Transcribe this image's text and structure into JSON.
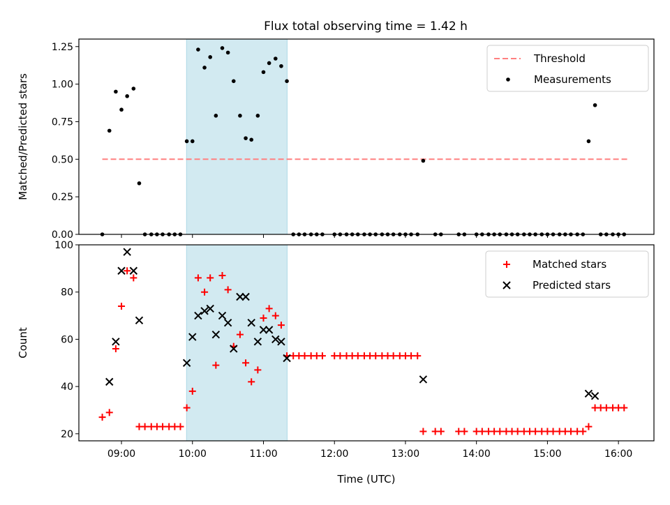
{
  "title": "Flux total observing time = 1.42 h",
  "colors": {
    "threshold": "#ff8080",
    "measurement": "#000000",
    "matched": "#ff0000",
    "predicted": "#000000",
    "highlight": "#add8e6"
  },
  "chart_data": [
    {
      "type": "scatter",
      "ylabel": "Matched/Predicted stars",
      "ylim": [
        0,
        1.3
      ],
      "xlim": [
        8.4,
        16.5
      ],
      "yticks": [
        0,
        0.25,
        0.5,
        0.75,
        1.0,
        1.25
      ],
      "ytick_labels": [
        "0.00",
        "0.25",
        "0.50",
        "0.75",
        "1.00",
        "1.25"
      ],
      "legend": [
        "Threshold",
        "Measurements"
      ],
      "legend_position": "top-right",
      "highlight_span": [
        "09:55",
        "11:20"
      ],
      "threshold": {
        "name": "Threshold",
        "y": 0.5,
        "x_range": [
          8.73,
          16.13
        ]
      },
      "series": [
        {
          "name": "Measurements",
          "x": [
            8.73,
            8.83,
            8.92,
            9.0,
            9.08,
            9.17,
            9.25,
            9.33,
            9.42,
            9.5,
            9.58,
            9.67,
            9.75,
            9.83,
            9.92,
            10.0,
            10.08,
            10.17,
            10.25,
            10.33,
            10.42,
            10.5,
            10.58,
            10.67,
            10.75,
            10.83,
            10.92,
            11.0,
            11.08,
            11.17,
            11.25,
            11.33,
            11.42,
            11.5,
            11.58,
            11.67,
            11.75,
            11.83,
            12.0,
            12.08,
            12.17,
            12.25,
            12.33,
            12.42,
            12.5,
            12.58,
            12.67,
            12.75,
            12.83,
            12.92,
            13.0,
            13.08,
            13.17,
            13.25,
            13.42,
            13.5,
            13.75,
            13.83,
            14.0,
            14.08,
            14.17,
            14.25,
            14.33,
            14.42,
            14.5,
            14.58,
            14.67,
            14.75,
            14.83,
            14.92,
            15.0,
            15.08,
            15.17,
            15.25,
            15.33,
            15.42,
            15.5,
            15.58,
            15.67,
            15.75,
            15.83,
            15.92,
            16.0,
            16.08
          ],
          "y": [
            0.0,
            0.69,
            0.95,
            0.83,
            0.92,
            0.97,
            0.34,
            0.0,
            0.0,
            0.0,
            0.0,
            0.0,
            0.0,
            0.0,
            0.62,
            0.62,
            1.23,
            1.11,
            1.18,
            0.79,
            1.24,
            1.21,
            1.02,
            0.79,
            0.64,
            0.63,
            0.79,
            1.08,
            1.14,
            1.17,
            1.12,
            1.02,
            0.0,
            0.0,
            0.0,
            0.0,
            0.0,
            0.0,
            0.0,
            0.0,
            0.0,
            0.0,
            0.0,
            0.0,
            0.0,
            0.0,
            0.0,
            0.0,
            0.0,
            0.0,
            0.0,
            0.0,
            0.0,
            0.49,
            0.0,
            0.0,
            0.0,
            0.0,
            0.0,
            0.0,
            0.0,
            0.0,
            0.0,
            0.0,
            0.0,
            0.0,
            0.0,
            0.0,
            0.0,
            0.0,
            0.0,
            0.0,
            0.0,
            0.0,
            0.0,
            0.0,
            0.0,
            0.62,
            0.86,
            0.0,
            0.0,
            0.0,
            0.0,
            0.0
          ]
        }
      ]
    },
    {
      "type": "scatter",
      "xlabel": "Time (UTC)",
      "ylabel": "Count",
      "ylim": [
        17,
        100
      ],
      "xlim": [
        8.4,
        16.5
      ],
      "yticks": [
        20,
        40,
        60,
        80,
        100
      ],
      "xticks": [
        9,
        10,
        11,
        12,
        13,
        14,
        15,
        16
      ],
      "xtick_labels": [
        "09:00",
        "10:00",
        "11:00",
        "12:00",
        "13:00",
        "14:00",
        "15:00",
        "16:00"
      ],
      "legend": [
        "Matched stars",
        "Predicted stars"
      ],
      "legend_position": "top-right",
      "highlight_span": [
        "09:55",
        "11:20"
      ],
      "series": [
        {
          "name": "Matched stars",
          "marker": "+",
          "x": [
            8.73,
            8.83,
            8.92,
            9.0,
            9.08,
            9.17,
            9.25,
            9.33,
            9.42,
            9.5,
            9.58,
            9.67,
            9.75,
            9.83,
            9.92,
            10.0,
            10.08,
            10.17,
            10.25,
            10.33,
            10.42,
            10.5,
            10.58,
            10.67,
            10.75,
            10.83,
            10.92,
            11.0,
            11.08,
            11.17,
            11.25,
            11.33,
            11.42,
            11.5,
            11.58,
            11.67,
            11.75,
            11.83,
            12.0,
            12.08,
            12.17,
            12.25,
            12.33,
            12.42,
            12.5,
            12.58,
            12.67,
            12.75,
            12.83,
            12.92,
            13.0,
            13.08,
            13.17,
            13.25,
            13.42,
            13.5,
            13.75,
            13.83,
            14.0,
            14.08,
            14.17,
            14.25,
            14.33,
            14.42,
            14.5,
            14.58,
            14.67,
            14.75,
            14.83,
            14.92,
            15.0,
            15.08,
            15.17,
            15.25,
            15.33,
            15.42,
            15.5,
            15.58,
            15.67,
            15.75,
            15.83,
            15.92,
            16.0,
            16.08
          ],
          "y": [
            27,
            29,
            56,
            74,
            89,
            86,
            23,
            23,
            23,
            23,
            23,
            23,
            23,
            23,
            31,
            38,
            86,
            80,
            86,
            49,
            87,
            81,
            57,
            62,
            50,
            42,
            47,
            69,
            73,
            70,
            66,
            53,
            53,
            53,
            53,
            53,
            53,
            53,
            53,
            53,
            53,
            53,
            53,
            53,
            53,
            53,
            53,
            53,
            53,
            53,
            53,
            53,
            53,
            21,
            21,
            21,
            21,
            21,
            21,
            21,
            21,
            21,
            21,
            21,
            21,
            21,
            21,
            21,
            21,
            21,
            21,
            21,
            21,
            21,
            21,
            21,
            21,
            23,
            31,
            31,
            31,
            31,
            31,
            31
          ]
        },
        {
          "name": "Predicted stars",
          "marker": "x",
          "x": [
            8.83,
            8.92,
            9.0,
            9.08,
            9.17,
            9.25,
            9.92,
            10.0,
            10.08,
            10.17,
            10.25,
            10.33,
            10.42,
            10.5,
            10.58,
            10.67,
            10.75,
            10.83,
            10.92,
            11.0,
            11.08,
            11.17,
            11.25,
            11.33,
            13.25,
            15.58,
            15.67
          ],
          "y": [
            42,
            59,
            89,
            97,
            89,
            68,
            50,
            61,
            70,
            72,
            73,
            62,
            70,
            67,
            56,
            78,
            78,
            67,
            59,
            64,
            64,
            60,
            59,
            52,
            43,
            37,
            36
          ]
        }
      ]
    }
  ]
}
